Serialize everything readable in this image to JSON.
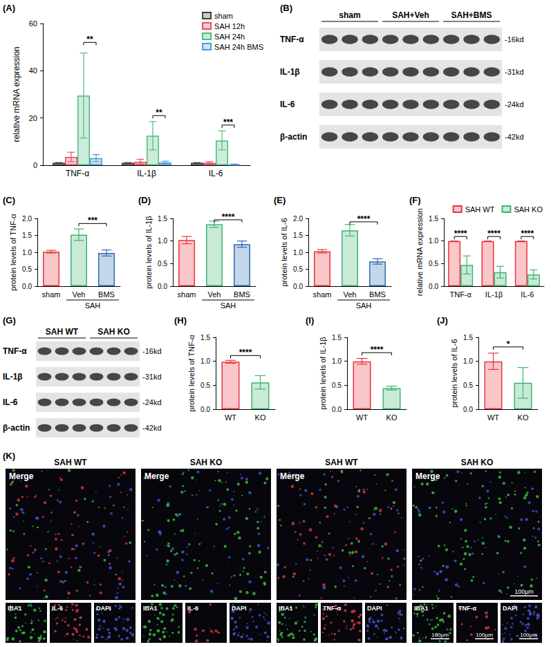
{
  "chart_data": [
    {
      "panel": "(A)",
      "type": "bar",
      "y_label": "relative mRNA expression",
      "categories": [
        "TNF-α",
        "IL-1β",
        "IL-6"
      ],
      "series": [
        {
          "name": "sham",
          "color": "#404040",
          "values": [
            1.0,
            1.0,
            1.0
          ],
          "errors": [
            0.1,
            0.1,
            0.1
          ]
        },
        {
          "name": "SAH 12h",
          "color": "#e84a5f",
          "values": [
            3.5,
            1.5,
            1.0
          ],
          "errors": [
            2.0,
            1.0,
            0.5
          ]
        },
        {
          "name": "SAH 24h",
          "color": "#4cbb7f",
          "values": [
            29.5,
            12.5,
            10.5
          ],
          "errors": [
            18.0,
            6.0,
            4.0
          ]
        },
        {
          "name": "SAH 24h BMS",
          "color": "#4a9ad8",
          "values": [
            3.0,
            1.2,
            0.3
          ],
          "errors": [
            1.5,
            0.5,
            0.2
          ]
        }
      ],
      "ylim": [
        0,
        60
      ],
      "yticks": [
        0,
        20,
        40,
        60
      ],
      "grid": false,
      "legend": "top-right",
      "annotations": [
        {
          "text": "**",
          "category": "TNF-α",
          "from": "SAH 24h",
          "to": "SAH 24h BMS",
          "y": 52
        },
        {
          "text": "**",
          "category": "IL-1β",
          "from": "SAH 24h",
          "to": "SAH 24h BMS",
          "y": 21
        },
        {
          "text": "***",
          "category": "IL-6",
          "from": "SAH 24h",
          "to": "SAH 24h BMS",
          "y": 17
        }
      ]
    },
    {
      "panel": "(C)",
      "type": "bar",
      "y_label": "protein levels of TNF-α",
      "categories": [
        "sham",
        "Veh",
        "BMS"
      ],
      "values": [
        1.02,
        1.52,
        0.98
      ],
      "errors": [
        0.04,
        0.17,
        0.09
      ],
      "colors": [
        "#e8343c",
        "#3cb371",
        "#2b6cb0"
      ],
      "group_label": {
        "text": "SAH",
        "categories": [
          "Veh",
          "BMS"
        ]
      },
      "ylim": [
        0,
        2
      ],
      "yticks": [
        {
          "value": 0,
          "label": "0.0"
        },
        {
          "value": 0.5,
          "label": "0.5"
        },
        {
          "value": 1,
          "label": "1.0"
        },
        {
          "value": 1.5,
          "label": "1.5"
        },
        {
          "value": 2,
          "label": "2.0"
        }
      ],
      "grid": false,
      "annotations": [
        {
          "text": "***",
          "from": "Veh",
          "to": "BMS",
          "y": 1.85
        }
      ]
    },
    {
      "panel": "(D)",
      "type": "bar",
      "y_label": "protein levels of IL-1β",
      "categories": [
        "sham",
        "Veh",
        "BMS"
      ],
      "values": [
        1.02,
        1.37,
        0.93
      ],
      "errors": [
        0.08,
        0.07,
        0.07
      ],
      "colors": [
        "#e8343c",
        "#3cb371",
        "#2b6cb0"
      ],
      "group_label": {
        "text": "SAH",
        "categories": [
          "Veh",
          "BMS"
        ]
      },
      "ylim": [
        0,
        1.5
      ],
      "yticks": [
        {
          "value": 0,
          "label": "0.0"
        },
        {
          "value": 0.5,
          "label": "0.5"
        },
        {
          "value": 1,
          "label": "1.0"
        },
        {
          "value": 1.5,
          "label": "1.5"
        }
      ],
      "grid": false,
      "annotations": [
        {
          "text": "****",
          "from": "Veh",
          "to": "BMS",
          "y": 1.47
        }
      ]
    },
    {
      "panel": "(E)",
      "type": "bar",
      "y_label": "protein levels of IL-6",
      "categories": [
        "sham",
        "Veh",
        "BMS"
      ],
      "values": [
        1.03,
        1.65,
        0.73
      ],
      "errors": [
        0.05,
        0.17,
        0.08
      ],
      "colors": [
        "#e8343c",
        "#3cb371",
        "#2b6cb0"
      ],
      "group_label": {
        "text": "SAH",
        "categories": [
          "Veh",
          "BMS"
        ]
      },
      "ylim": [
        0,
        2
      ],
      "yticks": [
        {
          "value": 0,
          "label": "0.0"
        },
        {
          "value": 0.5,
          "label": "0.5"
        },
        {
          "value": 1,
          "label": "1.0"
        },
        {
          "value": 1.5,
          "label": "1.5"
        },
        {
          "value": 2,
          "label": "2.0"
        }
      ],
      "grid": false,
      "annotations": [
        {
          "text": "****",
          "from": "Veh",
          "to": "BMS",
          "y": 1.9
        }
      ]
    },
    {
      "panel": "(F)",
      "type": "bar",
      "y_label": "relative mRNA expression",
      "categories": [
        "TNF-α",
        "IL-1β",
        "IL-6"
      ],
      "series": [
        {
          "name": "SAH WT",
          "color": "#e8343c",
          "values": [
            1.0,
            1.0,
            1.0
          ],
          "errors": [
            0,
            0,
            0
          ]
        },
        {
          "name": "SAH KO",
          "color": "#3cb371",
          "values": [
            0.47,
            0.31,
            0.26
          ],
          "errors": [
            0.2,
            0.13,
            0.1
          ]
        }
      ],
      "ylim": [
        0,
        1.5
      ],
      "yticks": [
        {
          "value": 0,
          "label": "0.0"
        },
        {
          "value": 0.5,
          "label": "0.5"
        },
        {
          "value": 1,
          "label": "1.0"
        },
        {
          "value": 1.5,
          "label": "1.5"
        }
      ],
      "grid": false,
      "legend": "top-right",
      "annotations": [
        {
          "text": "****",
          "category": "TNF-α",
          "from": "SAH WT",
          "to": "SAH KO",
          "y": 1.1
        },
        {
          "text": "****",
          "category": "IL-1β",
          "from": "SAH WT",
          "to": "SAH KO",
          "y": 1.1
        },
        {
          "text": "****",
          "category": "IL-6",
          "from": "SAH WT",
          "to": "SAH KO",
          "y": 1.1
        }
      ]
    },
    {
      "panel": "(H)",
      "type": "bar",
      "y_label": "protein levels of TNF-α",
      "categories": [
        "WT",
        "KO"
      ],
      "values": [
        0.99,
        0.56
      ],
      "errors": [
        0.03,
        0.14
      ],
      "colors": [
        "#e8343c",
        "#3cb371"
      ],
      "ylim": [
        0,
        1.5
      ],
      "yticks": [
        {
          "value": 0,
          "label": "0.0"
        },
        {
          "value": 0.5,
          "label": "0.5"
        },
        {
          "value": 1,
          "label": "1.0"
        },
        {
          "value": 1.5,
          "label": "1.5"
        }
      ],
      "grid": false,
      "annotations": [
        {
          "text": "****",
          "from": "WT",
          "to": "KO",
          "y": 1.12
        }
      ]
    },
    {
      "panel": "(I)",
      "type": "bar",
      "y_label": "protein levels of IL-1β",
      "categories": [
        "WT",
        "KO"
      ],
      "values": [
        1.0,
        0.44
      ],
      "errors": [
        0.06,
        0.04
      ],
      "colors": [
        "#e8343c",
        "#3cb371"
      ],
      "ylim": [
        0,
        1.5
      ],
      "yticks": [
        {
          "value": 0,
          "label": "0.0"
        },
        {
          "value": 0.5,
          "label": "0.5"
        },
        {
          "value": 1,
          "label": "1.0"
        },
        {
          "value": 1.5,
          "label": "1.5"
        }
      ],
      "grid": false,
      "annotations": [
        {
          "text": "****",
          "from": "WT",
          "to": "KO",
          "y": 1.18
        }
      ]
    },
    {
      "panel": "(J)",
      "type": "bar",
      "y_label": "protein levels of IL-6",
      "categories": [
        "WT",
        "KO"
      ],
      "values": [
        1.0,
        0.55
      ],
      "errors": [
        0.17,
        0.32
      ],
      "colors": [
        "#e8343c",
        "#3cb371"
      ],
      "ylim": [
        0,
        1.5
      ],
      "yticks": [
        {
          "value": 0,
          "label": "0.0"
        },
        {
          "value": 0.5,
          "label": "0.5"
        },
        {
          "value": 1,
          "label": "1.0"
        },
        {
          "value": 1.5,
          "label": "1.5"
        }
      ],
      "grid": false,
      "annotations": [
        {
          "text": "*",
          "from": "WT",
          "to": "KO",
          "y": 1.3
        }
      ]
    }
  ],
  "blots": [
    {
      "panel": "(B)",
      "groups": [
        {
          "label": "sham",
          "lanes": 3
        },
        {
          "label": "SAH+Veh",
          "lanes": 3
        },
        {
          "label": "SAH+BMS",
          "lanes": 3
        }
      ],
      "rows": [
        {
          "protein": "TNF-α",
          "size": "-16kd"
        },
        {
          "protein": "IL-1β",
          "size": "-31kd"
        },
        {
          "protein": "IL-6",
          "size": "-24kd"
        },
        {
          "protein": "β-actin",
          "size": "-42kd"
        }
      ]
    },
    {
      "panel": "(G)",
      "groups": [
        {
          "label": "SAH WT",
          "lanes": 3
        },
        {
          "label": "SAH KO",
          "lanes": 3
        }
      ],
      "rows": [
        {
          "protein": "TNF-α",
          "size": "-16kd"
        },
        {
          "protein": "IL-1β",
          "size": "-31kd"
        },
        {
          "protein": "IL-6",
          "size": "-24kd"
        },
        {
          "protein": "β-actin",
          "size": "-42kd"
        }
      ]
    }
  ],
  "micrographs": {
    "panel": "(K)",
    "scale_bar": "100μm",
    "panels": [
      {
        "title": "SAH WT",
        "main": "Merge",
        "channels": [
          "IBA1",
          "IL-6",
          "DAPI"
        ]
      },
      {
        "title": "SAH KO",
        "main": "Merge",
        "channels": [
          "IBA1",
          "IL-6",
          "DAPI"
        ]
      },
      {
        "title": "SAH WT",
        "main": "Merge",
        "channels": [
          "IBA1",
          "TNF-α",
          "DAPI"
        ]
      },
      {
        "title": "SAH KO",
        "main": "Merge",
        "channels": [
          "IBA1",
          "TNF-α",
          "DAPI"
        ]
      }
    ]
  }
}
